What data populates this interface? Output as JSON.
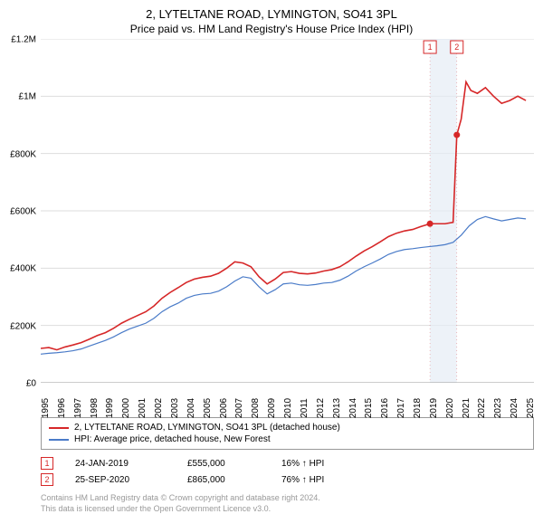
{
  "title": "2, LYTELTANE ROAD, LYMINGTON, SO41 3PL",
  "subtitle": "Price paid vs. HM Land Registry's House Price Index (HPI)",
  "chart": {
    "type": "line",
    "background_color": "#ffffff",
    "grid_color": "#dddddd",
    "axis_color": "#999999",
    "x_range": [
      1995,
      2025.5
    ],
    "y_range": [
      0,
      1200000
    ],
    "y_ticks": [
      0,
      200000,
      400000,
      600000,
      800000,
      1000000,
      1200000
    ],
    "y_tick_labels": [
      "£0",
      "£200K",
      "£400K",
      "£600K",
      "£800K",
      "£1M",
      "£1.2M"
    ],
    "x_ticks": [
      1995,
      1996,
      1997,
      1998,
      1999,
      2000,
      2001,
      2002,
      2003,
      2004,
      2005,
      2006,
      2007,
      2008,
      2009,
      2010,
      2011,
      2012,
      2013,
      2014,
      2015,
      2016,
      2017,
      2018,
      2019,
      2020,
      2021,
      2022,
      2023,
      2024,
      2025
    ],
    "x_tick_labels": [
      "1995",
      "1996",
      "1997",
      "1998",
      "1999",
      "2000",
      "2001",
      "2002",
      "2003",
      "2004",
      "2005",
      "2006",
      "2007",
      "2008",
      "2009",
      "2010",
      "2011",
      "2012",
      "2013",
      "2014",
      "2015",
      "2016",
      "2017",
      "2018",
      "2019",
      "2020",
      "2021",
      "2022",
      "2023",
      "2024",
      "2025"
    ],
    "highlight_band": {
      "x_start": 2019.07,
      "x_end": 2020.73,
      "color": "#e6ecf5"
    },
    "series_hpi": {
      "color": "#4a7bc8",
      "line_width": 1.2,
      "points": [
        [
          1995,
          100000
        ],
        [
          1995.5,
          103000
        ],
        [
          1996,
          105000
        ],
        [
          1996.5,
          108000
        ],
        [
          1997,
          112000
        ],
        [
          1997.5,
          118000
        ],
        [
          1998,
          128000
        ],
        [
          1998.5,
          138000
        ],
        [
          1999,
          148000
        ],
        [
          1999.5,
          160000
        ],
        [
          2000,
          175000
        ],
        [
          2000.5,
          188000
        ],
        [
          2001,
          198000
        ],
        [
          2001.5,
          208000
        ],
        [
          2002,
          225000
        ],
        [
          2002.5,
          248000
        ],
        [
          2003,
          265000
        ],
        [
          2003.5,
          278000
        ],
        [
          2004,
          295000
        ],
        [
          2004.5,
          305000
        ],
        [
          2005,
          310000
        ],
        [
          2005.5,
          312000
        ],
        [
          2006,
          320000
        ],
        [
          2006.5,
          335000
        ],
        [
          2007,
          355000
        ],
        [
          2007.5,
          370000
        ],
        [
          2008,
          365000
        ],
        [
          2008.5,
          335000
        ],
        [
          2009,
          310000
        ],
        [
          2009.5,
          325000
        ],
        [
          2010,
          345000
        ],
        [
          2010.5,
          348000
        ],
        [
          2011,
          342000
        ],
        [
          2011.5,
          340000
        ],
        [
          2012,
          343000
        ],
        [
          2012.5,
          348000
        ],
        [
          2013,
          350000
        ],
        [
          2013.5,
          358000
        ],
        [
          2014,
          372000
        ],
        [
          2014.5,
          390000
        ],
        [
          2015,
          405000
        ],
        [
          2015.5,
          418000
        ],
        [
          2016,
          432000
        ],
        [
          2016.5,
          448000
        ],
        [
          2017,
          458000
        ],
        [
          2017.5,
          465000
        ],
        [
          2018,
          468000
        ],
        [
          2018.5,
          472000
        ],
        [
          2019,
          475000
        ],
        [
          2019.5,
          478000
        ],
        [
          2020,
          482000
        ],
        [
          2020.5,
          490000
        ],
        [
          2021,
          515000
        ],
        [
          2021.5,
          548000
        ],
        [
          2022,
          570000
        ],
        [
          2022.5,
          580000
        ],
        [
          2023,
          572000
        ],
        [
          2023.5,
          565000
        ],
        [
          2024,
          570000
        ],
        [
          2024.5,
          575000
        ],
        [
          2025,
          572000
        ]
      ]
    },
    "series_property": {
      "color": "#d62728",
      "line_width": 1.6,
      "points": [
        [
          1995,
          120000
        ],
        [
          1995.5,
          123000
        ],
        [
          1996,
          115000
        ],
        [
          1996.5,
          125000
        ],
        [
          1997,
          132000
        ],
        [
          1997.5,
          140000
        ],
        [
          1998,
          152000
        ],
        [
          1998.5,
          165000
        ],
        [
          1999,
          175000
        ],
        [
          1999.5,
          190000
        ],
        [
          2000,
          208000
        ],
        [
          2000.5,
          222000
        ],
        [
          2001,
          235000
        ],
        [
          2001.5,
          248000
        ],
        [
          2002,
          268000
        ],
        [
          2002.5,
          295000
        ],
        [
          2003,
          315000
        ],
        [
          2003.5,
          332000
        ],
        [
          2004,
          350000
        ],
        [
          2004.5,
          362000
        ],
        [
          2005,
          368000
        ],
        [
          2005.5,
          372000
        ],
        [
          2006,
          382000
        ],
        [
          2006.5,
          400000
        ],
        [
          2007,
          422000
        ],
        [
          2007.5,
          418000
        ],
        [
          2008,
          405000
        ],
        [
          2008.5,
          370000
        ],
        [
          2009,
          345000
        ],
        [
          2009.5,
          362000
        ],
        [
          2010,
          385000
        ],
        [
          2010.5,
          388000
        ],
        [
          2011,
          382000
        ],
        [
          2011.5,
          380000
        ],
        [
          2012,
          383000
        ],
        [
          2012.5,
          390000
        ],
        [
          2013,
          395000
        ],
        [
          2013.5,
          405000
        ],
        [
          2014,
          422000
        ],
        [
          2014.5,
          442000
        ],
        [
          2015,
          460000
        ],
        [
          2015.5,
          475000
        ],
        [
          2016,
          492000
        ],
        [
          2016.5,
          510000
        ],
        [
          2017,
          522000
        ],
        [
          2017.5,
          530000
        ],
        [
          2018,
          535000
        ],
        [
          2018.5,
          545000
        ],
        [
          2019.07,
          555000
        ],
        [
          2019.5,
          555000
        ],
        [
          2020,
          555000
        ],
        [
          2020.5,
          560000
        ],
        [
          2020.73,
          865000
        ],
        [
          2021,
          920000
        ],
        [
          2021.3,
          1050000
        ],
        [
          2021.6,
          1020000
        ],
        [
          2022,
          1010000
        ],
        [
          2022.5,
          1030000
        ],
        [
          2023,
          1000000
        ],
        [
          2023.5,
          975000
        ],
        [
          2024,
          985000
        ],
        [
          2024.5,
          1000000
        ],
        [
          2025,
          985000
        ]
      ]
    },
    "markers": [
      {
        "n": "1",
        "x": 2019.07,
        "y": 555000,
        "color": "#d62728"
      },
      {
        "n": "2",
        "x": 2020.73,
        "y": 865000,
        "color": "#d62728"
      }
    ],
    "top_markers": [
      {
        "n": "1",
        "x": 2019.07,
        "color": "#d62728"
      },
      {
        "n": "2",
        "x": 2020.73,
        "color": "#d62728"
      }
    ]
  },
  "legend": {
    "series1": "2, LYTELTANE ROAD, LYMINGTON, SO41 3PL (detached house)",
    "series2": "HPI: Average price, detached house, New Forest"
  },
  "transactions": [
    {
      "n": "1",
      "color": "#d62728",
      "date": "24-JAN-2019",
      "price": "£555,000",
      "diff": "16% ↑ HPI"
    },
    {
      "n": "2",
      "color": "#d62728",
      "date": "25-SEP-2020",
      "price": "£865,000",
      "diff": "76% ↑ HPI"
    }
  ],
  "footnote": {
    "line1": "Contains HM Land Registry data © Crown copyright and database right 2024.",
    "line2": "This data is licensed under the Open Government Licence v3.0."
  }
}
